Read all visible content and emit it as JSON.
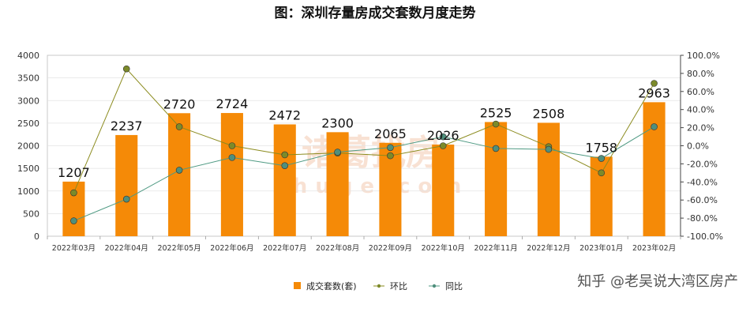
{
  "chart_data": {
    "type": "bar",
    "title": "图：深圳存量房成交套数月度走势",
    "categories": [
      "2022年03月",
      "2022年04月",
      "2022年05月",
      "2022年06月",
      "2022年07月",
      "2022年08月",
      "2022年09月",
      "2022年10月",
      "2022年11月",
      "2022年12月",
      "2023年01月",
      "2023年02月"
    ],
    "y_ticks": [
      "0",
      "500",
      "1000",
      "1500",
      "2000",
      "2500",
      "3000",
      "3500",
      "4000"
    ],
    "y2_ticks": [
      "-100.0%",
      "-80.0%",
      "-60.0%",
      "-40.0%",
      "-20.0%",
      "0.0%",
      "20.0%",
      "40.0%",
      "60.0%",
      "80.0%",
      "100.0%"
    ],
    "ylim": [
      0,
      4000
    ],
    "y2lim": [
      -100,
      100
    ],
    "grid": true,
    "legend_position": "bottom",
    "series": [
      {
        "name": "成交套数(套)",
        "type": "bar",
        "axis": "left",
        "color": "#f58a07",
        "values": [
          1207,
          2237,
          2720,
          2724,
          2472,
          2300,
          2065,
          2026,
          2525,
          2508,
          1758,
          2963
        ],
        "labels": [
          "1207",
          "2237",
          "2720",
          "2724",
          "2472",
          "2300",
          "2065",
          "2026",
          "2525",
          "2508",
          "1758",
          "2963"
        ]
      },
      {
        "name": "环比",
        "type": "line",
        "axis": "right",
        "color": "#8b8b1e",
        "marker_color": "#7c8a2a",
        "values": [
          -52,
          85,
          21,
          0,
          -10,
          -8,
          -11,
          0,
          24,
          -1,
          -30,
          69
        ]
      },
      {
        "name": "同比",
        "type": "line",
        "axis": "right",
        "color": "#4f9a83",
        "marker_color": "#4f8f7c",
        "values": [
          -83,
          -59,
          -27,
          -13,
          -22,
          -7,
          -2,
          10,
          -3,
          -4,
          -14,
          21
        ]
      }
    ]
  },
  "watermark": {
    "main": "诸葛找房",
    "sub": "zhuge.com",
    "credit": "知乎 @老吴说大湾区房产"
  }
}
